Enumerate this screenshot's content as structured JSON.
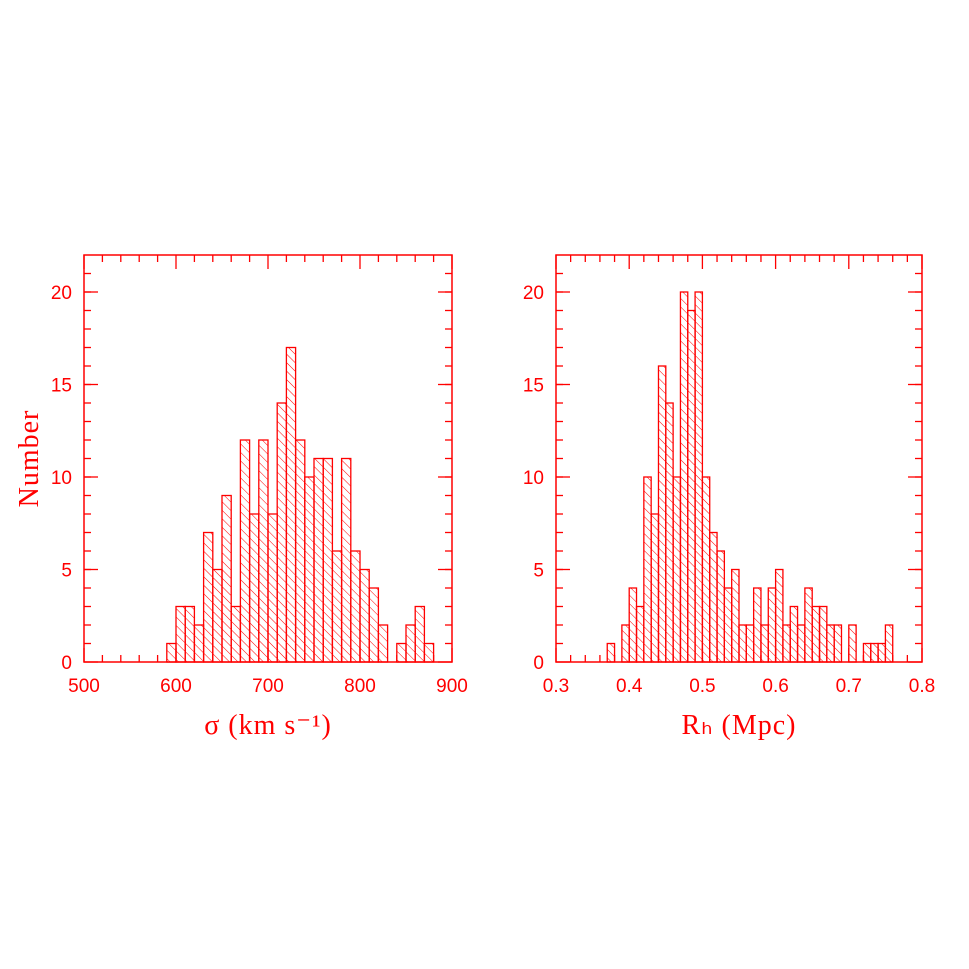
{
  "chart_data": [
    {
      "type": "histogram",
      "xlabel": "σ (km s⁻¹)",
      "ylabel": "Number",
      "color": "#ff0000",
      "bins": [
        590,
        600,
        610,
        620,
        630,
        640,
        650,
        660,
        670,
        680,
        690,
        700,
        710,
        720,
        730,
        740,
        750,
        760,
        770,
        780,
        790,
        800,
        810,
        820,
        830,
        840,
        850,
        860,
        870,
        880
      ],
      "values": [
        1,
        3,
        3,
        2,
        7,
        5,
        9,
        3,
        12,
        8,
        12,
        8,
        14,
        17,
        12,
        10,
        11,
        11,
        6,
        11,
        6,
        5,
        4,
        2,
        0,
        1,
        2,
        3,
        1
      ],
      "xlim": [
        500,
        900
      ],
      "xticks": [
        500,
        600,
        700,
        800,
        900
      ],
      "ylim": [
        0,
        22
      ],
      "yticks": [
        0,
        5,
        10,
        15,
        20
      ]
    },
    {
      "type": "histogram",
      "xlabel": "Rₕ (Mpc)",
      "color": "#ff0000",
      "bins": [
        0.37,
        0.38,
        0.39,
        0.4,
        0.41,
        0.42,
        0.43,
        0.44,
        0.45,
        0.46,
        0.47,
        0.48,
        0.49,
        0.5,
        0.51,
        0.52,
        0.53,
        0.54,
        0.55,
        0.56,
        0.57,
        0.58,
        0.59,
        0.6,
        0.61,
        0.62,
        0.63,
        0.64,
        0.65,
        0.66,
        0.67,
        0.68,
        0.69,
        0.7,
        0.71,
        0.72,
        0.73,
        0.74,
        0.75,
        0.76
      ],
      "values": [
        1,
        0,
        2,
        4,
        3,
        10,
        8,
        16,
        14,
        10,
        20,
        19,
        20,
        10,
        7,
        6,
        4,
        5,
        2,
        2,
        4,
        2,
        4,
        5,
        2,
        3,
        2,
        4,
        3,
        3,
        2,
        2,
        0,
        2,
        0,
        1,
        1,
        1,
        2
      ],
      "xlim": [
        0.3,
        0.8
      ],
      "xticks": [
        0.3,
        0.4,
        0.5,
        0.6,
        0.7,
        0.8
      ],
      "ylim": [
        0,
        22
      ],
      "yticks": [
        0,
        5,
        10,
        15,
        20
      ]
    }
  ]
}
